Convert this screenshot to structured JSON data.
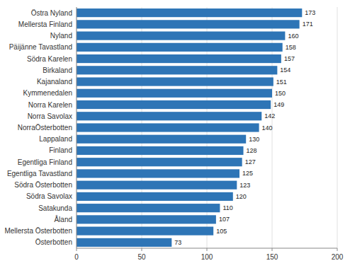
{
  "chart_data": {
    "type": "bar",
    "orientation": "horizontal",
    "categories": [
      "Österbotten",
      "Mellersta Österbotten",
      "Åland",
      "Satakunda",
      "Södra Savolax",
      "Södra Österbotten",
      "Egentliga Tavastland",
      "Egentliga Finland",
      "Finland",
      "Lappaland",
      "NorraÖsterbotten",
      "Norra Savolax",
      "Norra Karelen",
      "Kymmenedalen",
      "Kajanaland",
      "Birkaland",
      "Södra Karelen",
      "Päijänne Tavastland",
      "Nyland",
      "Mellersta Finland",
      "Östra Nyland"
    ],
    "values": [
      73,
      105,
      107,
      110,
      120,
      123,
      125,
      127,
      128,
      130,
      140,
      142,
      149,
      150,
      151,
      154,
      157,
      158,
      160,
      171,
      173
    ],
    "color": "#2E75B6",
    "xlim": [
      0,
      200
    ],
    "xticks": [
      0,
      50,
      100,
      150,
      200
    ],
    "grid": true,
    "data_labels": true
  }
}
